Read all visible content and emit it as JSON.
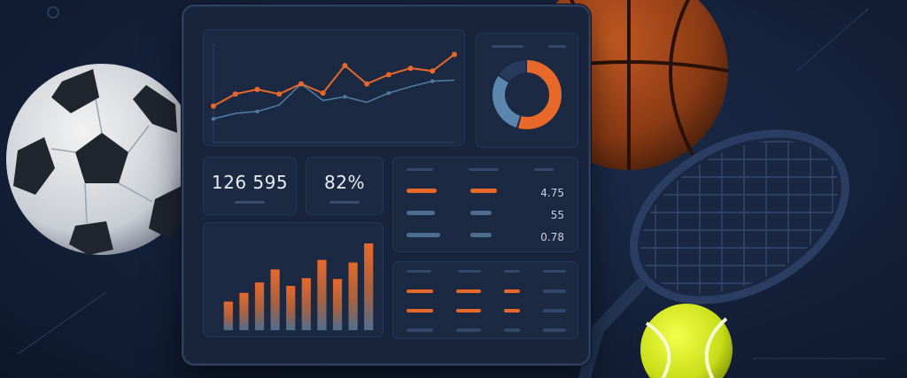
{
  "stats": {
    "total_value": "126 595",
    "percent_value": "82%"
  },
  "table": {
    "values": [
      "4.75",
      "55",
      "0.78"
    ]
  },
  "chart_data": [
    {
      "type": "line",
      "title": "",
      "xlabel": "",
      "ylabel": "",
      "x": [
        1,
        2,
        3,
        4,
        5,
        6,
        7,
        8,
        9,
        10,
        11,
        12
      ],
      "series": [
        {
          "values": [
            3.2,
            4.5,
            5.0,
            4.5,
            5.6,
            4.6,
            7.6,
            5.6,
            6.6,
            7.3,
            7.0,
            8.8
          ]
        },
        {
          "values": [
            1.8,
            2.4,
            2.6,
            3.3,
            5.6,
            3.8,
            4.2,
            3.6,
            4.6,
            5.3,
            5.9,
            6.0
          ]
        }
      ],
      "ylim": [
        0,
        10
      ],
      "colors": [
        "#e8682a",
        "#4e7ba3"
      ]
    },
    {
      "type": "pie",
      "title": "",
      "values": [
        55,
        30,
        15
      ],
      "colors": [
        "#e8682a",
        "#5b86ad",
        "#2a3a5c"
      ]
    },
    {
      "type": "bar",
      "title": "",
      "xlabel": "",
      "ylabel": "",
      "values": [
        33,
        43,
        55,
        70,
        51,
        60,
        81,
        59,
        78,
        100
      ],
      "ylim": [
        0,
        100
      ],
      "colors": [
        "#e8682a",
        "#4e6e90"
      ]
    }
  ],
  "icons": [
    "soccer-ball-icon",
    "basketball-icon",
    "tennis-racket-icon",
    "tennis-ball-icon"
  ]
}
